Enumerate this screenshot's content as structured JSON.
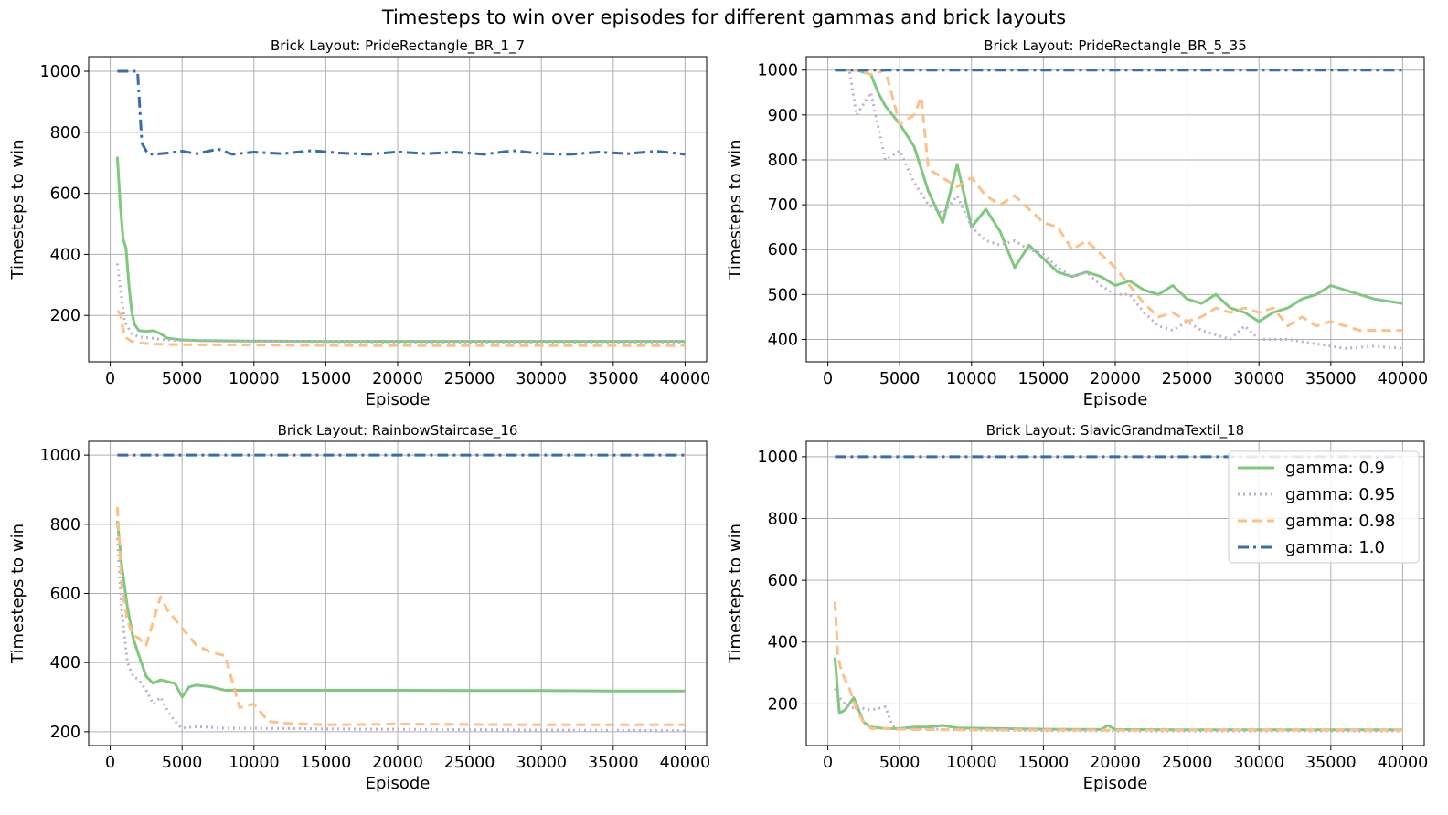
{
  "suptitle": "Timesteps to win over episodes for different gammas and brick layouts",
  "series_styles": [
    {
      "name": "gamma: 0.9",
      "color": "#7fc97f",
      "dash": "solid"
    },
    {
      "name": "gamma: 0.95",
      "color": "#beaed4",
      "dash": "dotted"
    },
    {
      "name": "gamma: 0.98",
      "color": "#fdc086",
      "dash": "dashed"
    },
    {
      "name": "gamma: 1.0",
      "color": "#386cb0",
      "dash": "dashdot"
    }
  ],
  "legend": {
    "placement": "upper-right of bottom-right panel",
    "entries": [
      "gamma: 0.9",
      "gamma: 0.95",
      "gamma: 0.98",
      "gamma: 1.0"
    ]
  },
  "chart_data": [
    {
      "type": "line",
      "title": "Brick Layout: PrideRectangle_BR_1_7",
      "xlabel": "Episode",
      "ylabel": "Timesteps to win",
      "xlim": [
        -1500,
        41500
      ],
      "ylim": [
        48,
        1048
      ],
      "xticks": [
        0,
        5000,
        10000,
        15000,
        20000,
        25000,
        30000,
        35000,
        40000
      ],
      "yticks": [
        200,
        400,
        600,
        800,
        1000
      ],
      "grid": true,
      "series": [
        {
          "name": "gamma: 0.9",
          "x": [
            500,
            700,
            900,
            1100,
            1300,
            1500,
            1700,
            2000,
            2500,
            3000,
            3500,
            4000,
            5000,
            6000,
            8000,
            10000,
            15000,
            20000,
            25000,
            30000,
            35000,
            40000
          ],
          "y": [
            720,
            560,
            450,
            420,
            300,
            210,
            170,
            150,
            148,
            150,
            140,
            125,
            120,
            118,
            117,
            116,
            115,
            115,
            115,
            115,
            115,
            115
          ]
        },
        {
          "name": "gamma: 0.95",
          "x": [
            500,
            700,
            1000,
            1500,
            2000,
            3000,
            4000,
            5000,
            8000,
            12000,
            20000,
            30000,
            40000
          ],
          "y": [
            370,
            290,
            180,
            140,
            130,
            125,
            120,
            118,
            115,
            115,
            112,
            112,
            112
          ]
        },
        {
          "name": "gamma: 0.98",
          "x": [
            500,
            700,
            1000,
            1500,
            2000,
            3000,
            5000,
            10000,
            15000,
            20000,
            25000,
            30000,
            40000
          ],
          "y": [
            215,
            205,
            130,
            115,
            110,
            106,
            104,
            103,
            102,
            101,
            101,
            101,
            101
          ]
        },
        {
          "name": "gamma: 1.0",
          "x": [
            500,
            1500,
            1900,
            2200,
            2600,
            3000,
            4000,
            5000,
            6000,
            7500,
            8500,
            10000,
            12000,
            14000,
            16000,
            18000,
            20000,
            22000,
            24000,
            26000,
            28000,
            30000,
            32000,
            34000,
            36000,
            38000,
            40000
          ],
          "y": [
            1000,
            1000,
            1000,
            765,
            730,
            728,
            732,
            738,
            730,
            745,
            728,
            735,
            730,
            740,
            732,
            728,
            736,
            730,
            735,
            728,
            740,
            730,
            728,
            735,
            730,
            738,
            728
          ]
        }
      ]
    },
    {
      "type": "line",
      "title": "Brick Layout: PrideRectangle_BR_5_35",
      "xlabel": "Episode",
      "ylabel": "Timesteps to win",
      "xlim": [
        -1500,
        41500
      ],
      "ylim": [
        350,
        1030
      ],
      "xticks": [
        0,
        5000,
        10000,
        15000,
        20000,
        25000,
        30000,
        35000,
        40000
      ],
      "yticks": [
        400,
        500,
        600,
        700,
        800,
        900,
        1000
      ],
      "grid": true,
      "series": [
        {
          "name": "gamma: 0.9",
          "x": [
            500,
            2000,
            3000,
            3500,
            4000,
            5000,
            6000,
            7000,
            8000,
            9000,
            10000,
            11000,
            12000,
            13000,
            14000,
            15000,
            16000,
            17000,
            18000,
            19000,
            20000,
            21000,
            22000,
            23000,
            24000,
            25000,
            26000,
            27000,
            28000,
            29000,
            30000,
            31000,
            32000,
            33000,
            34000,
            35000,
            36000,
            37000,
            38000,
            39000,
            40000
          ],
          "y": [
            1000,
            1000,
            990,
            950,
            920,
            880,
            830,
            730,
            660,
            790,
            650,
            690,
            640,
            560,
            610,
            580,
            550,
            540,
            550,
            540,
            520,
            530,
            510,
            500,
            520,
            490,
            480,
            500,
            470,
            460,
            440,
            460,
            470,
            490,
            500,
            520,
            510,
            500,
            490,
            485,
            480
          ]
        },
        {
          "name": "gamma: 0.95",
          "x": [
            500,
            1500,
            2000,
            3000,
            4000,
            5000,
            6000,
            7000,
            8000,
            9000,
            10000,
            11000,
            12000,
            13000,
            14000,
            15000,
            16000,
            17000,
            18000,
            19000,
            20000,
            21000,
            22000,
            23000,
            24000,
            25000,
            26000,
            27000,
            28000,
            29000,
            30000,
            32000,
            34000,
            36000,
            38000,
            40000
          ],
          "y": [
            1000,
            1000,
            900,
            950,
            800,
            820,
            750,
            700,
            680,
            720,
            650,
            620,
            610,
            620,
            600,
            590,
            560,
            540,
            550,
            520,
            500,
            500,
            460,
            430,
            420,
            440,
            420,
            410,
            400,
            430,
            400,
            400,
            390,
            380,
            385,
            380
          ]
        },
        {
          "name": "gamma: 0.98",
          "x": [
            500,
            2000,
            3000,
            4000,
            5000,
            6000,
            6500,
            7000,
            8000,
            9000,
            10000,
            11000,
            12000,
            13000,
            14000,
            15000,
            16000,
            17000,
            18000,
            19000,
            20000,
            21000,
            22000,
            23000,
            24000,
            25000,
            26000,
            27000,
            28000,
            29000,
            30000,
            31000,
            32000,
            33000,
            34000,
            35000,
            36000,
            37000,
            38000,
            39000,
            40000
          ],
          "y": [
            1000,
            1000,
            990,
            1000,
            880,
            900,
            940,
            780,
            760,
            740,
            760,
            720,
            700,
            720,
            690,
            660,
            650,
            600,
            620,
            590,
            560,
            520,
            480,
            450,
            460,
            440,
            450,
            470,
            460,
            470,
            460,
            470,
            430,
            450,
            430,
            440,
            430,
            420,
            420,
            420,
            420
          ]
        },
        {
          "name": "gamma: 1.0",
          "x": [
            500,
            40000
          ],
          "y": [
            1000,
            1000
          ]
        }
      ]
    },
    {
      "type": "line",
      "title": "Brick Layout: RainbowStaircase_16",
      "xlabel": "Episode",
      "ylabel": "Timesteps to win",
      "xlim": [
        -1500,
        41500
      ],
      "ylim": [
        160,
        1040
      ],
      "xticks": [
        0,
        5000,
        10000,
        15000,
        20000,
        25000,
        30000,
        35000,
        40000
      ],
      "yticks": [
        200,
        400,
        600,
        800,
        1000
      ],
      "grid": true,
      "series": [
        {
          "name": "gamma: 0.9",
          "x": [
            500,
            800,
            1200,
            1600,
            2000,
            2500,
            3000,
            3500,
            4000,
            4500,
            5000,
            5500,
            6000,
            7000,
            8000,
            9000,
            15000,
            20000,
            25000,
            30000,
            35000,
            40000
          ],
          "y": [
            810,
            680,
            560,
            470,
            420,
            360,
            340,
            350,
            345,
            340,
            300,
            330,
            335,
            330,
            320,
            320,
            320,
            320,
            319,
            319,
            318,
            318
          ]
        },
        {
          "name": "gamma: 0.95",
          "x": [
            500,
            800,
            1200,
            1600,
            2000,
            2500,
            3000,
            3500,
            4000,
            4500,
            5000,
            6000,
            8000,
            10000,
            15000,
            20000,
            30000,
            40000
          ],
          "y": [
            760,
            550,
            400,
            360,
            350,
            320,
            280,
            300,
            260,
            230,
            210,
            215,
            210,
            210,
            208,
            207,
            205,
            203
          ]
        },
        {
          "name": "gamma: 0.98",
          "x": [
            500,
            800,
            1200,
            1600,
            2000,
            2500,
            3000,
            3500,
            4000,
            5000,
            6000,
            7000,
            8000,
            9000,
            10000,
            11000,
            12000,
            15000,
            20000,
            30000,
            40000
          ],
          "y": [
            850,
            620,
            520,
            480,
            470,
            450,
            520,
            590,
            550,
            500,
            450,
            430,
            420,
            270,
            280,
            230,
            225,
            220,
            222,
            220,
            220
          ]
        },
        {
          "name": "gamma: 1.0",
          "x": [
            500,
            40000
          ],
          "y": [
            1000,
            1000
          ]
        }
      ]
    },
    {
      "type": "line",
      "title": "Brick Layout: SlavicGrandmaTextil_18",
      "xlabel": "Episode",
      "ylabel": "Timesteps to win",
      "xlim": [
        -1500,
        41500
      ],
      "ylim": [
        65,
        1050
      ],
      "xticks": [
        0,
        5000,
        10000,
        15000,
        20000,
        25000,
        30000,
        35000,
        40000
      ],
      "yticks": [
        200,
        400,
        600,
        800,
        1000
      ],
      "grid": true,
      "series": [
        {
          "name": "gamma: 0.9",
          "x": [
            500,
            800,
            1200,
            1800,
            2500,
            3000,
            4000,
            5000,
            6000,
            7000,
            8000,
            9000,
            12000,
            15000,
            19000,
            19500,
            20000,
            25000,
            30000,
            40000
          ],
          "y": [
            350,
            170,
            180,
            220,
            140,
            125,
            120,
            120,
            125,
            125,
            130,
            122,
            120,
            118,
            117,
            130,
            117,
            116,
            116,
            116
          ]
        },
        {
          "name": "gamma: 0.95",
          "x": [
            500,
            800,
            1500,
            2000,
            3000,
            4000,
            4500,
            5000,
            10000,
            20000,
            30000,
            40000
          ],
          "y": [
            250,
            220,
            185,
            190,
            180,
            190,
            130,
            120,
            115,
            112,
            112,
            112
          ]
        },
        {
          "name": "gamma: 0.98",
          "x": [
            500,
            700,
            1000,
            1500,
            2000,
            2500,
            3000,
            4000,
            5000,
            6000,
            10000,
            20000,
            30000,
            40000
          ],
          "y": [
            530,
            350,
            300,
            250,
            180,
            140,
            120,
            120,
            118,
            117,
            116,
            115,
            115,
            115
          ]
        },
        {
          "name": "gamma: 1.0",
          "x": [
            500,
            40000
          ],
          "y": [
            1000,
            1000
          ]
        }
      ]
    }
  ]
}
